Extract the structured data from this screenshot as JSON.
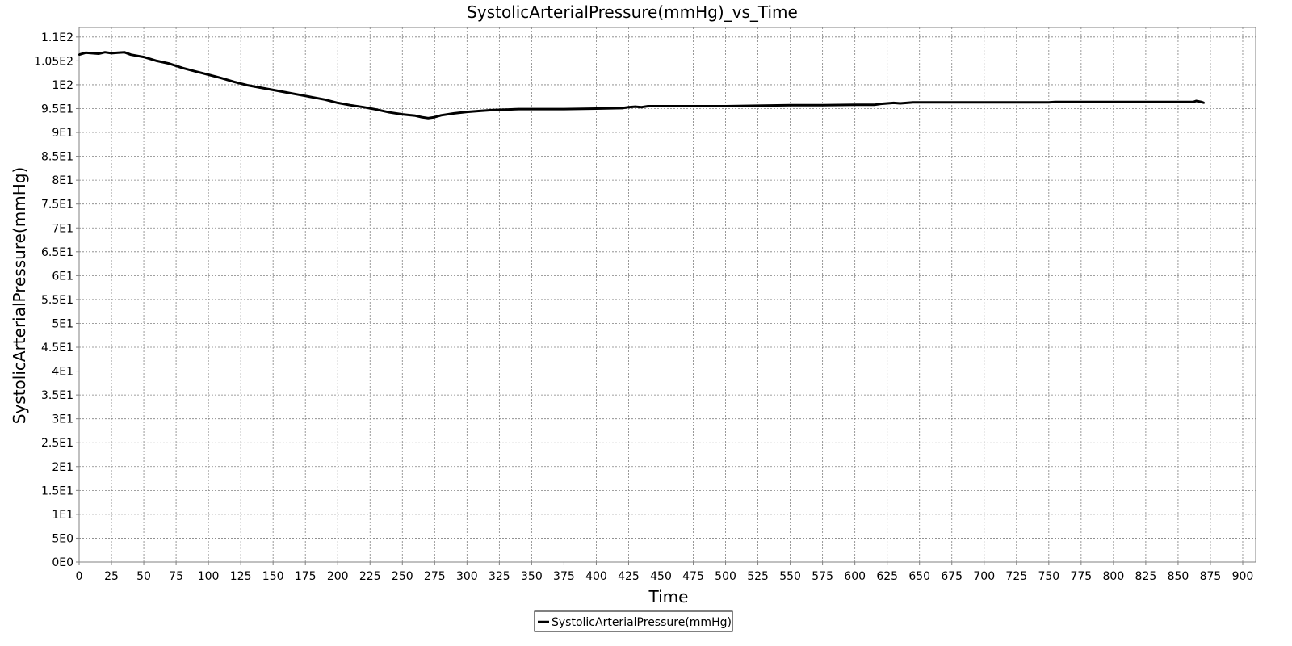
{
  "chart_data": {
    "type": "line",
    "title": "SystolicArterialPressure(mmHg)_vs_Time",
    "xlabel": "Time",
    "ylabel": "SystolicArterialPressure(mmHg)",
    "xlim": [
      0,
      910
    ],
    "ylim": [
      0,
      112
    ],
    "x_ticks": [
      0,
      25,
      50,
      75,
      100,
      125,
      150,
      175,
      200,
      225,
      250,
      275,
      300,
      325,
      350,
      375,
      400,
      425,
      450,
      475,
      500,
      525,
      550,
      575,
      600,
      625,
      650,
      675,
      700,
      725,
      750,
      775,
      800,
      825,
      850,
      875,
      900
    ],
    "x_tick_labels": [
      "0",
      "25",
      "50",
      "75",
      "100",
      "125",
      "150",
      "175",
      "200",
      "225",
      "250",
      "275",
      "300",
      "325",
      "350",
      "375",
      "400",
      "425",
      "450",
      "475",
      "500",
      "525",
      "550",
      "575",
      "600",
      "625",
      "650",
      "675",
      "700",
      "725",
      "750",
      "775",
      "800",
      "825",
      "850",
      "875",
      "900"
    ],
    "y_ticks": [
      0,
      5,
      10,
      15,
      20,
      25,
      30,
      35,
      40,
      45,
      50,
      55,
      60,
      65,
      70,
      75,
      80,
      85,
      90,
      95,
      100,
      105,
      110
    ],
    "y_tick_labels": [
      "0E0",
      "5E0",
      "1E1",
      "1.5E1",
      "2E1",
      "2.5E1",
      "3E1",
      "3.5E1",
      "4E1",
      "4.5E1",
      "5E1",
      "5.5E1",
      "6E1",
      "6.5E1",
      "7E1",
      "7.5E1",
      "8E1",
      "8.5E1",
      "9E1",
      "9.5E1",
      "1E2",
      "1.05E2",
      "1.1E2"
    ],
    "grid": true,
    "legend_position": "bottom",
    "series": [
      {
        "name": "SystolicArterialPressure(mmHg)",
        "color": "#000000",
        "x": [
          0,
          5,
          10,
          15,
          20,
          25,
          30,
          35,
          40,
          50,
          60,
          70,
          80,
          90,
          100,
          110,
          120,
          130,
          140,
          150,
          160,
          170,
          180,
          190,
          200,
          210,
          220,
          230,
          240,
          250,
          260,
          265,
          270,
          275,
          280,
          290,
          300,
          310,
          320,
          330,
          340,
          350,
          375,
          400,
          420,
          425,
          430,
          435,
          440,
          450,
          475,
          500,
          525,
          550,
          575,
          600,
          615,
          620,
          625,
          630,
          635,
          645,
          700,
          750,
          755,
          800,
          850,
          862,
          864,
          866,
          868,
          870
        ],
        "values": [
          106.3,
          106.7,
          106.6,
          106.5,
          106.8,
          106.6,
          106.7,
          106.8,
          106.3,
          105.8,
          105.0,
          104.4,
          103.5,
          102.8,
          102.1,
          101.4,
          100.6,
          99.9,
          99.4,
          98.9,
          98.4,
          97.9,
          97.4,
          96.9,
          96.2,
          95.7,
          95.3,
          94.8,
          94.2,
          93.8,
          93.5,
          93.2,
          93.0,
          93.2,
          93.6,
          94.0,
          94.3,
          94.5,
          94.7,
          94.8,
          94.9,
          94.9,
          94.9,
          95.0,
          95.1,
          95.3,
          95.4,
          95.3,
          95.5,
          95.5,
          95.5,
          95.5,
          95.6,
          95.7,
          95.7,
          95.8,
          95.8,
          96.0,
          96.1,
          96.2,
          96.1,
          96.3,
          96.3,
          96.3,
          96.4,
          96.4,
          96.4,
          96.4,
          96.6,
          96.5,
          96.4,
          96.2
        ]
      }
    ]
  }
}
